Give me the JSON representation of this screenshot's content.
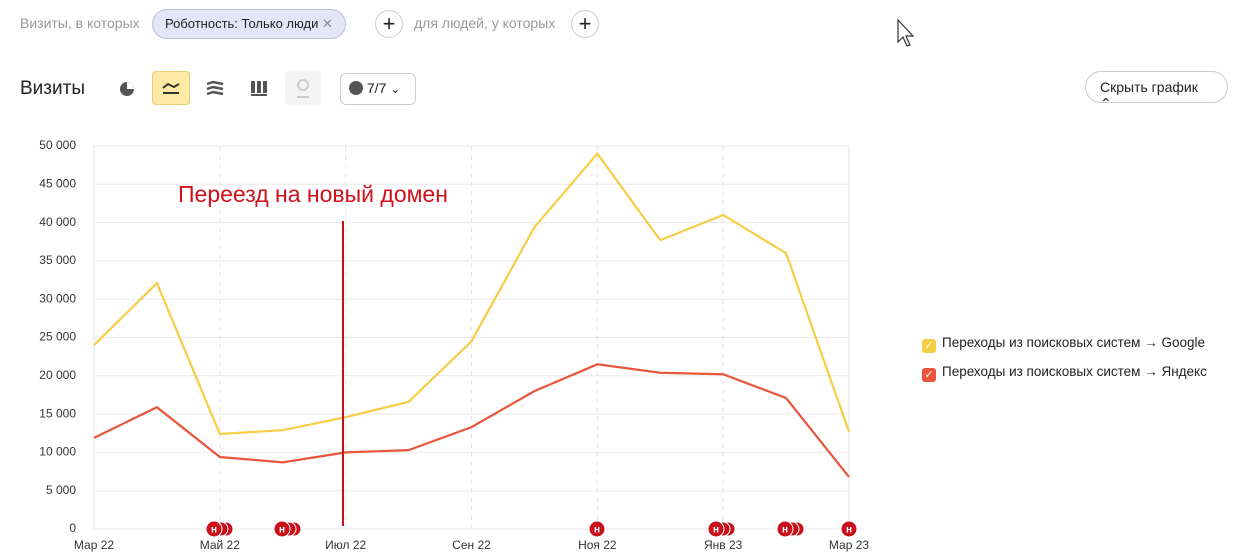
{
  "filters": {
    "prefix": "Визиты, в которых",
    "chip": "Роботность: Только люди",
    "people": "для людей, у которых"
  },
  "toolbar": {
    "title": "Визиты",
    "annotations_count": "7/7",
    "hide_chart": "Скрыть график"
  },
  "chart_data": {
    "type": "line",
    "annotation": "Переезд на новый домен",
    "event_marker": "н",
    "categories": [
      "Мар 22",
      null,
      "Май 22",
      null,
      "Июл 22",
      null,
      "Сен 22",
      null,
      "Ноя 22",
      null,
      "Янв 23",
      null,
      "Мар 23"
    ],
    "series": [
      {
        "name": "Переходы из поисковых систем → Google",
        "color": "#f7cd45",
        "values": [
          24000,
          32100,
          12400,
          12900,
          14600,
          16600,
          24500,
          39400,
          49000,
          37700,
          41000,
          36000,
          12700
        ]
      },
      {
        "name": "Переходы из поисковых систем → Яндекс",
        "color": "#e9553b",
        "values": [
          11900,
          15900,
          9400,
          8700,
          10000,
          10300,
          13300,
          18000,
          21500,
          20400,
          20200,
          17100,
          6800
        ]
      }
    ],
    "ylim": [
      0,
      50000
    ],
    "yticks": [
      0,
      {
        "value": 5000,
        "label": "5 000"
      },
      {
        "value": 10000,
        "label": "10 000"
      },
      {
        "value": 15000,
        "label": "15 000"
      },
      {
        "value": 20000,
        "label": "20 000"
      },
      {
        "value": 25000,
        "label": "25 000"
      },
      {
        "value": 30000,
        "label": "30 000"
      },
      {
        "value": 35000,
        "label": "35 000"
      },
      {
        "value": 40000,
        "label": "40 000"
      },
      {
        "value": 45000,
        "label": "45 000"
      },
      {
        "value": 50000,
        "label": "50 000"
      }
    ],
    "grid": true
  }
}
